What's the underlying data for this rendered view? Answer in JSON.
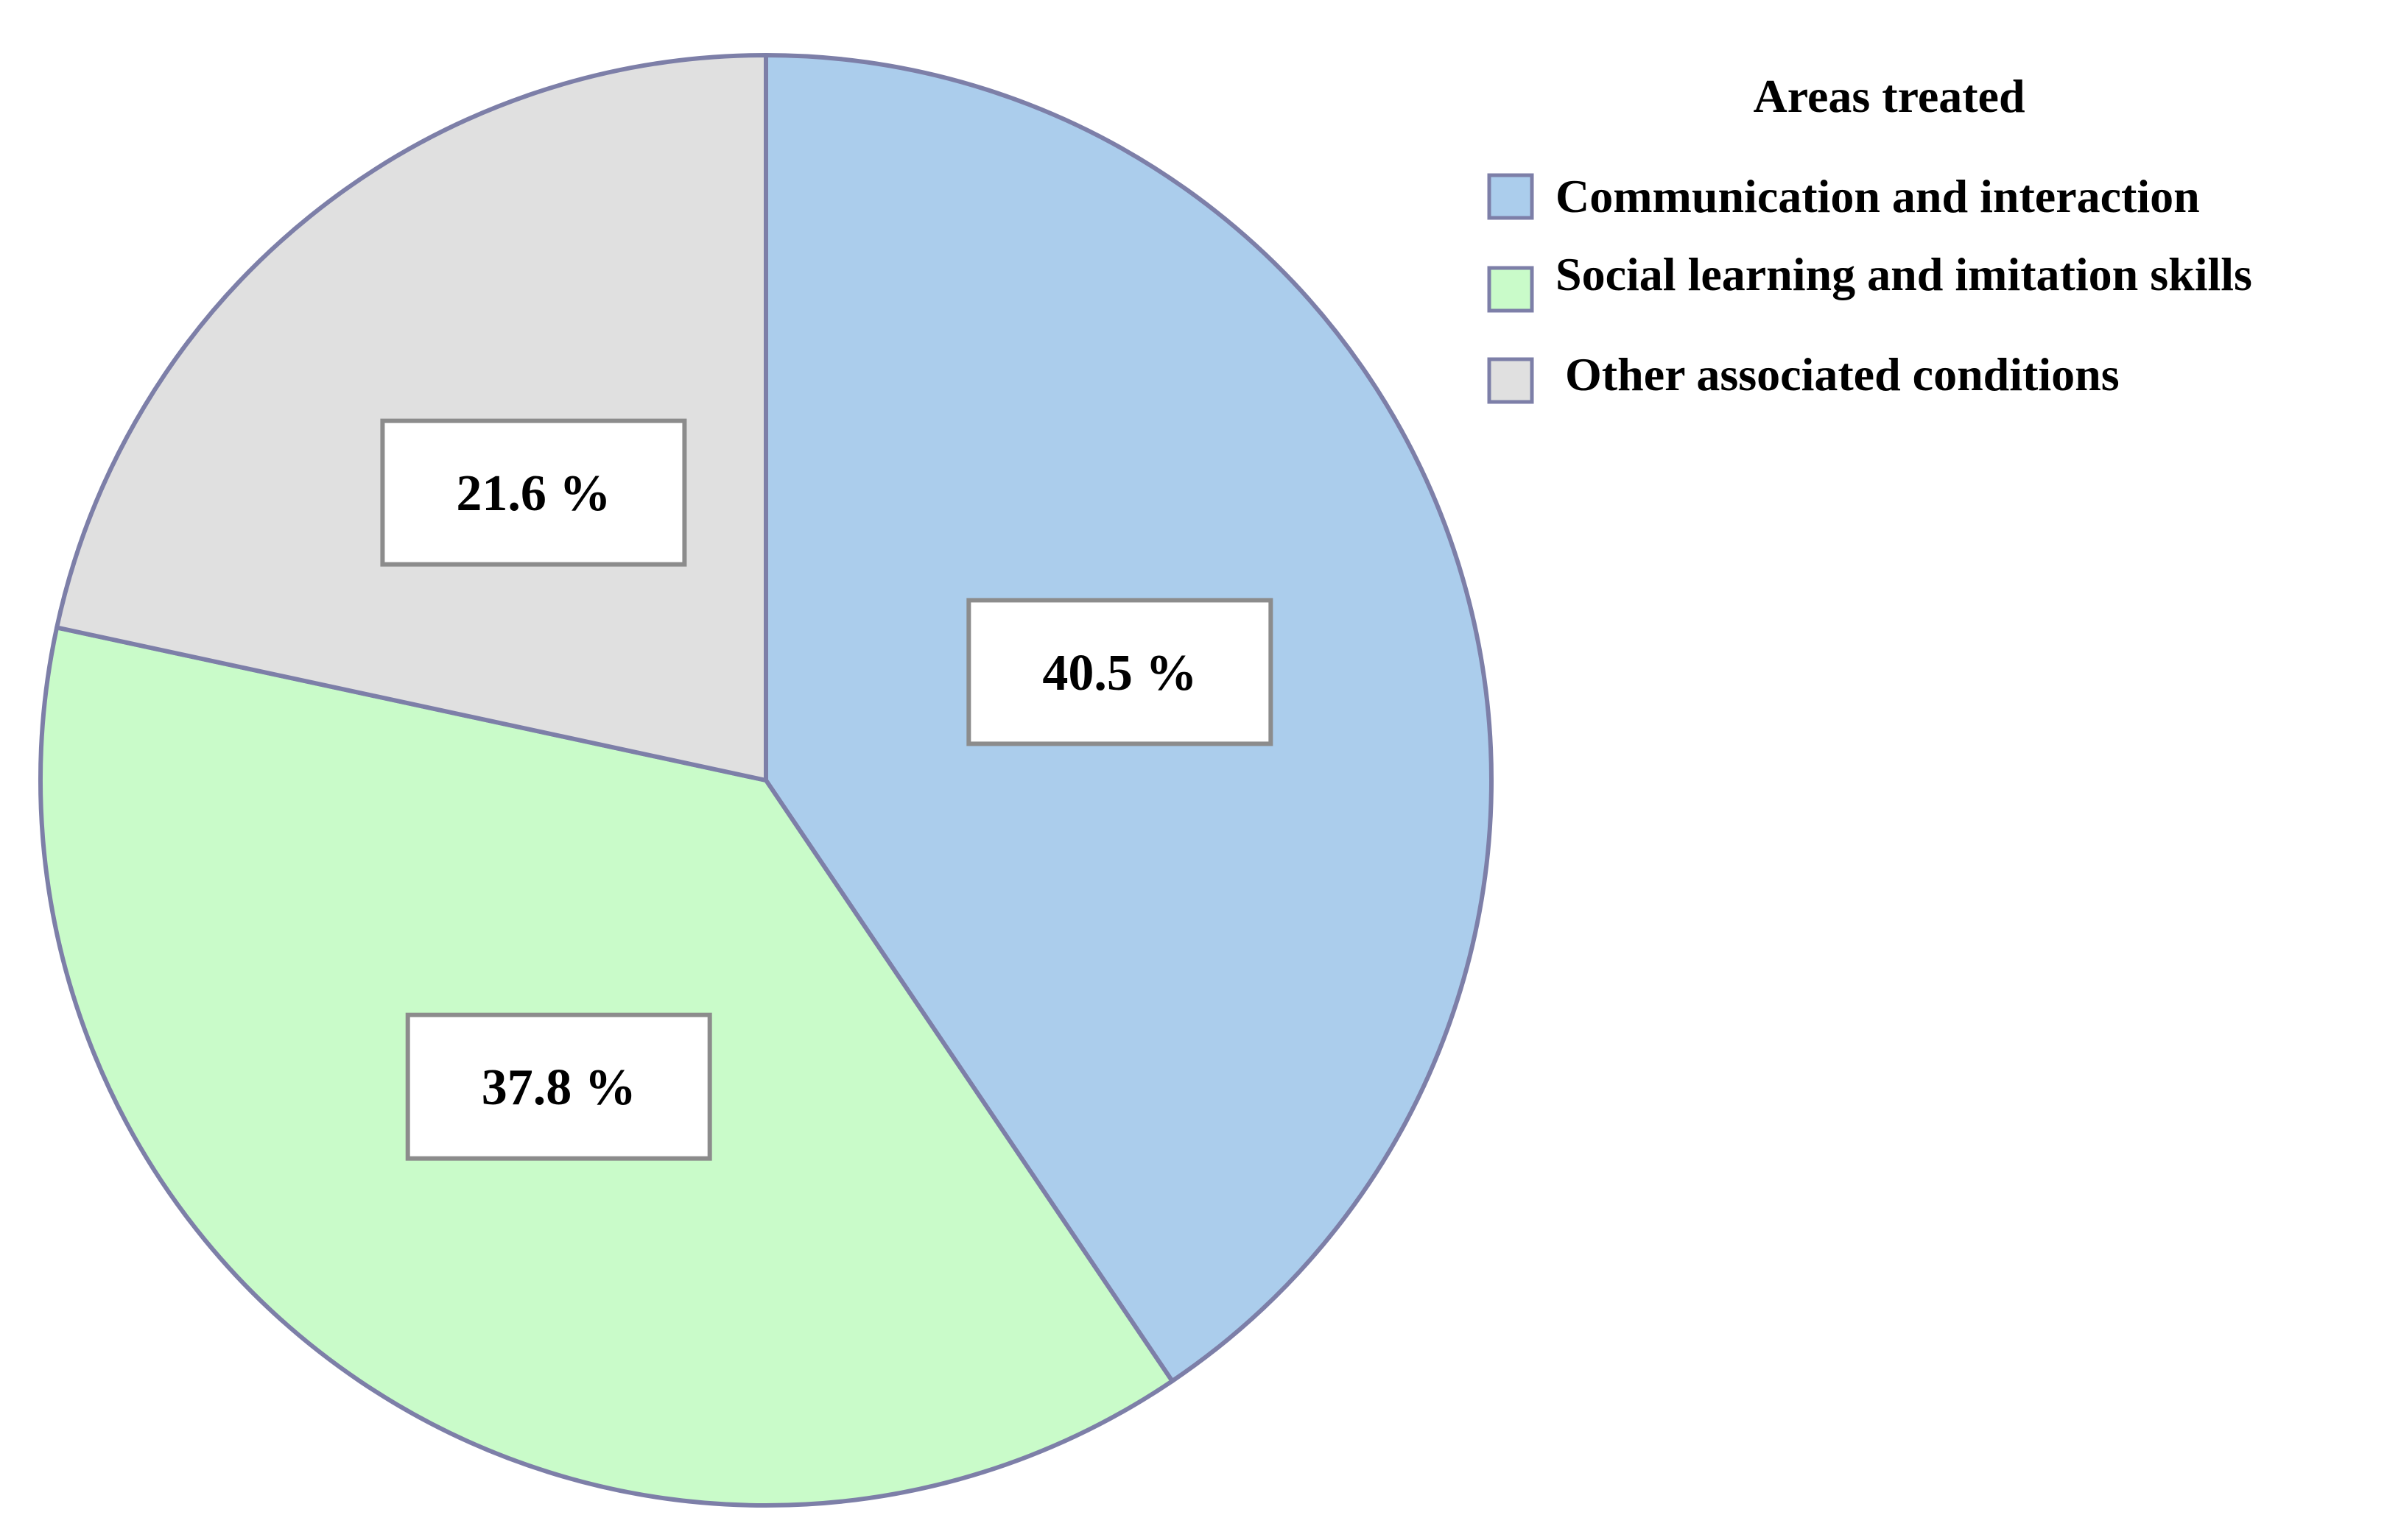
{
  "chart_data": {
    "type": "pie",
    "legend_title": "Areas treated",
    "legend_placement": "top-right",
    "slices": [
      {
        "label": "Communication and interaction",
        "value": 40.5,
        "display": "40.5 %",
        "color": "#abcdec"
      },
      {
        "label": "Social learning and imitation skills",
        "value": 37.8,
        "display": "37.8 %",
        "color": "#c9fbc9"
      },
      {
        "label": "Other associated conditions",
        "value": 21.6,
        "display": "21.6 %",
        "color": "#e0e0e0"
      }
    ],
    "border_color": "#7d7fa8"
  }
}
